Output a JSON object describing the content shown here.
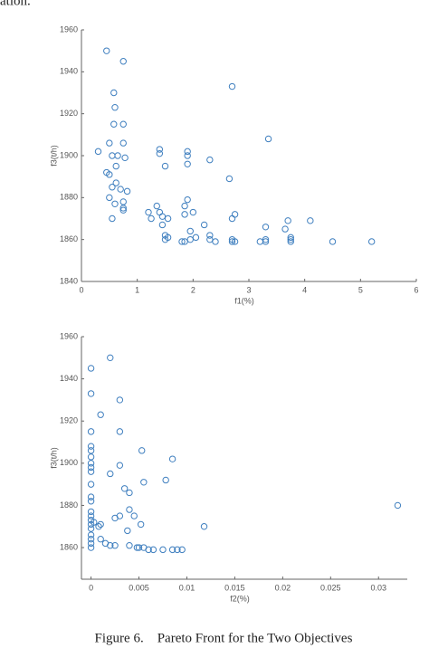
{
  "fragment": "ation.",
  "caption": "Figure 6.    Pareto Front for the Two Objectives",
  "chart_data": [
    {
      "type": "scatter",
      "xlabel": "f1(%)",
      "ylabel": "f3(t/h)",
      "color": "#3f7fbf",
      "xlim": [
        0,
        6
      ],
      "ylim": [
        1840,
        1960
      ],
      "xticks": [
        0,
        1,
        2,
        3,
        4,
        5,
        6
      ],
      "yticks": [
        1840,
        1860,
        1880,
        1900,
        1920,
        1940,
        1960
      ],
      "x": [
        0.45,
        0.75,
        0.58,
        2.7,
        0.6,
        0.58,
        0.75,
        0.3,
        0.5,
        0.75,
        0.55,
        0.65,
        0.78,
        0.62,
        0.45,
        0.5,
        0.62,
        0.55,
        0.7,
        0.82,
        0.75,
        0.6,
        0.5,
        0.75,
        0.75,
        0.55,
        1.4,
        1.4,
        1.5,
        1.9,
        1.9,
        1.9,
        2.3,
        2.65,
        3.35,
        1.35,
        1.4,
        1.2,
        1.25,
        1.45,
        1.55,
        1.45,
        1.85,
        1.9,
        2.0,
        1.85,
        2.2,
        2.75,
        2.7,
        3.3,
        3.7,
        3.65,
        4.1,
        1.5,
        1.5,
        1.55,
        1.85,
        1.95,
        2.05,
        2.3,
        2.3,
        2.4,
        2.7,
        2.75,
        2.7,
        3.2,
        3.3,
        3.3,
        3.75,
        3.75,
        3.75,
        4.5,
        5.2,
        1.95,
        1.8
      ],
      "values": [
        1950,
        1945,
        1930,
        1933,
        1923,
        1915,
        1915,
        1902,
        1906,
        1906,
        1900,
        1900,
        1899,
        1895,
        1892,
        1891,
        1887,
        1885,
        1884,
        1883,
        1878,
        1877,
        1880,
        1875,
        1874,
        1870,
        1903,
        1901,
        1895,
        1902,
        1900,
        1896,
        1898,
        1889,
        1908,
        1876,
        1873,
        1873,
        1870,
        1871,
        1870,
        1867,
        1876,
        1879,
        1873,
        1872,
        1867,
        1872,
        1870,
        1866,
        1869,
        1865,
        1869,
        1862,
        1860,
        1861,
        1859,
        1860,
        1861,
        1862,
        1860,
        1859,
        1859,
        1859,
        1860,
        1859,
        1859,
        1860,
        1859,
        1860,
        1861,
        1859,
        1859,
        1864,
        1859
      ]
    },
    {
      "type": "scatter",
      "xlabel": "f2(%)",
      "ylabel": "f3(t/h)",
      "color": "#3f7fbf",
      "xlim": [
        -0.001,
        0.033
      ],
      "ylim": [
        1845,
        1960
      ],
      "xticks": [
        0,
        0.005,
        0.01,
        0.015,
        0.02,
        0.025,
        0.03
      ],
      "yticks": [
        1860,
        1880,
        1900,
        1920,
        1940,
        1960
      ],
      "x": [
        0,
        0.002,
        0,
        0.003,
        0.001,
        0.003,
        0,
        0,
        0,
        0,
        0,
        0,
        0,
        0,
        0,
        0,
        0,
        0,
        0,
        0,
        0,
        0,
        0,
        0,
        0,
        0.002,
        0.003,
        0.0053,
        0.0055,
        0.0035,
        0.004,
        0.0085,
        0.0078,
        0.003,
        0.0025,
        0.004,
        0.0045,
        0.0052,
        0.0038,
        0.001,
        0.0015,
        0.002,
        0.0025,
        0.004,
        0.0048,
        0.005,
        0.0055,
        0.006,
        0.0065,
        0.0075,
        0.0085,
        0.009,
        0.0095,
        0.0118,
        0.032,
        0.0008,
        0.001,
        0.0003
      ],
      "values": [
        1945,
        1950,
        1933,
        1930,
        1923,
        1915,
        1915,
        1908,
        1906,
        1903,
        1900,
        1898,
        1896,
        1890,
        1884,
        1882,
        1877,
        1875,
        1873,
        1871,
        1869,
        1866,
        1862,
        1860,
        1864,
        1895,
        1899,
        1906,
        1891,
        1888,
        1886,
        1902,
        1892,
        1875,
        1874,
        1878,
        1875,
        1871,
        1868,
        1871,
        1862,
        1861,
        1861,
        1861,
        1860,
        1860,
        1860,
        1859,
        1859,
        1859,
        1859,
        1859,
        1859,
        1870,
        1880,
        1870,
        1864,
        1872
      ]
    }
  ]
}
